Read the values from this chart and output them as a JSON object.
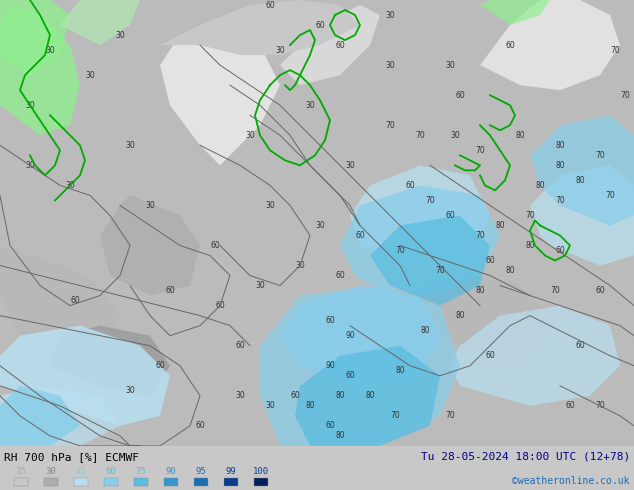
{
  "title_left": "RH 700 hPa [%] ECMWF",
  "title_right": "Tu 28-05-2024 18:00 UTC (12+78)",
  "credit": "©weatheronline.co.uk",
  "legend_values": [
    "15",
    "30",
    "45",
    "60",
    "75",
    "90",
    "95",
    "99",
    "100"
  ],
  "legend_colors": [
    "#c8c8c8",
    "#adadad",
    "#b8dff0",
    "#87ceeb",
    "#5bbde0",
    "#3399cc",
    "#1a6db5",
    "#0a3d8f",
    "#04205c"
  ],
  "legend_label_colors": [
    "#aaaaaa",
    "#888888",
    "#87ceeb",
    "#5bbde0",
    "#5bbde0",
    "#3399cc",
    "#1a6db5",
    "#0a3d8f",
    "#0a3d8f"
  ],
  "bg_color": "#c8c8c8",
  "figsize": [
    6.34,
    4.9
  ],
  "dpi": 100,
  "left_label_color": "#000000",
  "right_label_color": "#00008b",
  "credit_color": "#1e6db5",
  "map_gray_light": "#d8d8d8",
  "map_gray_mid": "#b0b0b0",
  "map_gray_dark": "#909090",
  "map_white": "#f0f0f0",
  "map_blue_light": "#b8dff0",
  "map_blue_mid": "#87ceeb",
  "map_blue_dark": "#5bbde0",
  "map_green": "#90ee90",
  "map_green_bright": "#32cd32"
}
